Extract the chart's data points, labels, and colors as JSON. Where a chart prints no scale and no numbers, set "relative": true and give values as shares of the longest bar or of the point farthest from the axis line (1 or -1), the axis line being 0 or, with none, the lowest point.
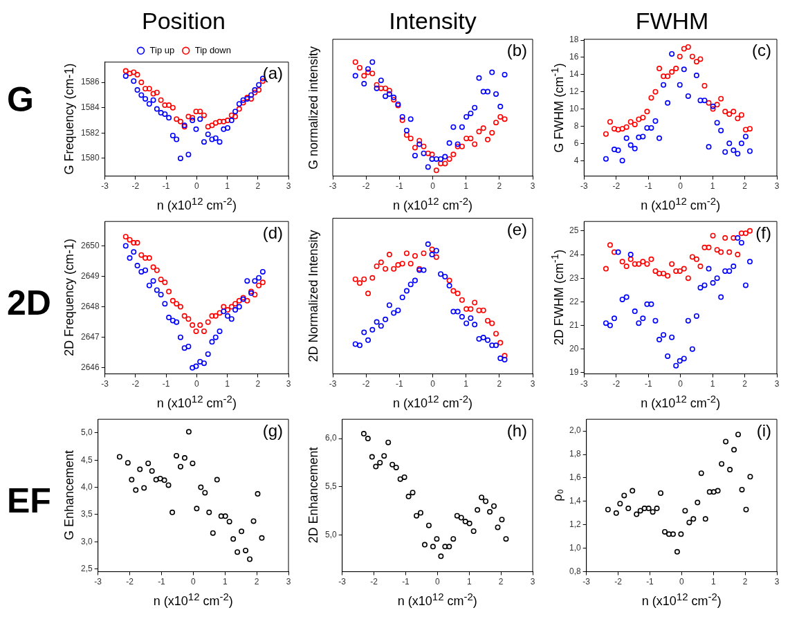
{
  "chart_data": [
    {
      "type": "scatter",
      "title": "Position",
      "xlabel": "n (x10$^{12}$ cm$^{-2}$)",
      "ylabel": "G Frequency (cm-1)",
      "annotations": [
        "(a)",
        "G"
      ],
      "legend": "top",
      "marker": "circle",
      "xlim": [
        -3,
        3
      ],
      "xticks": [
        -3,
        -2,
        -1,
        0,
        1,
        2,
        3
      ],
      "ylim": [
        1578.6,
        1587.6
      ],
      "yticks": [
        1580,
        1582,
        1584,
        1586
      ],
      "x": [
        -2.32,
        -2.19,
        -2.06,
        -1.94,
        -1.81,
        -1.68,
        -1.55,
        -1.42,
        -1.3,
        -1.17,
        -1.04,
        -0.91,
        -0.78,
        -0.66,
        -0.53,
        -0.4,
        -0.27,
        -0.14,
        -0.02,
        0.11,
        0.24,
        0.37,
        0.5,
        0.62,
        0.75,
        0.88,
        1.01,
        1.14,
        1.26,
        1.39,
        1.52,
        1.65,
        1.78,
        1.9,
        2.03,
        2.16
      ],
      "series": [
        {
          "name": "Tip up",
          "color": "#0000ff",
          "values": [
            1586.5,
            null,
            1586.1,
            1585.4,
            1585.0,
            1584.7,
            1584.3,
            1584.6,
            1583.9,
            1583.6,
            1583.5,
            1583.2,
            1581.8,
            1581.5,
            1580.0,
            1582.6,
            1580.3,
            1583.0,
            1582.3,
            1583.1,
            1581.3,
            1581.9,
            1581.5,
            1581.6,
            1581.3,
            1582.3,
            1582.4,
            1583.0,
            1583.7,
            1584.3,
            1584.6,
            1584.7,
            1585.0,
            1585.4,
            1585.8,
            1586.3
          ]
        },
        {
          "name": "Tip down",
          "color": "#ff0000",
          "values": [
            1586.9,
            1586.7,
            1586.8,
            1586.6,
            1586.0,
            1585.5,
            1585.5,
            1585.1,
            1585.2,
            1584.6,
            1584.2,
            1584.2,
            1584.0,
            1583.1,
            1582.9,
            1582.5,
            1583.3,
            1583.2,
            1583.7,
            1583.7,
            1583.4,
            1582.5,
            1582.6,
            1582.8,
            1582.9,
            1582.9,
            1583.0,
            1583.4,
            1583.3,
            1583.9,
            1584.4,
            1584.8,
            1584.7,
            1585.2,
            1585.4,
            1586.1
          ]
        }
      ]
    },
    {
      "type": "scatter",
      "title": "Intensity",
      "xlabel": "n (x10$^{12}$ cm$^{-2}$)",
      "ylabel": "G normalized intensity",
      "annotations": [
        "(b)"
      ],
      "relative": true,
      "marker": "circle",
      "xlim": [
        -3,
        3
      ],
      "xticks": [
        -3,
        -2,
        -1,
        0,
        1,
        2,
        3
      ],
      "x": [
        -2.32,
        -2.19,
        -2.06,
        -1.94,
        -1.81,
        -1.68,
        -1.55,
        -1.42,
        -1.3,
        -1.17,
        -1.04,
        -0.91,
        -0.78,
        -0.66,
        -0.53,
        -0.4,
        -0.27,
        -0.14,
        -0.02,
        0.11,
        0.24,
        0.37,
        0.5,
        0.62,
        0.75,
        0.88,
        1.01,
        1.14,
        1.26,
        1.39,
        1.52,
        1.65,
        1.78,
        1.9,
        2.03,
        2.16
      ],
      "series": [
        {
          "color": "#0000ff",
          "values": [
            0.88,
            null,
            0.81,
            0.94,
            1.0,
            0.77,
            0.84,
            0.7,
            0.72,
            0.69,
            0.63,
            0.52,
            0.4,
            0.5,
            0.18,
            0.28,
            0.2,
            0.08,
            0.15,
            0.15,
            0.15,
            0.17,
            0.29,
            0.43,
            0.28,
            0.43,
            0.52,
            0.55,
            0.6,
            0.86,
            0.74,
            0.74,
            0.91,
            0.72,
            0.61,
            0.89
          ]
        },
        {
          "color": "#ff0000",
          "values": [
            1.0,
            0.95,
            0.88,
            0.91,
            0.9,
            0.8,
            0.77,
            0.77,
            0.75,
            0.67,
            0.62,
            0.49,
            0.36,
            0.33,
            0.25,
            0.31,
            0.26,
            0.2,
            0.19,
            0.05,
            0.11,
            0.11,
            0.15,
            0.19,
            0.26,
            0.26,
            0.33,
            0.33,
            0.28,
            0.39,
            0.42,
            0.32,
            0.38,
            0.47,
            0.52,
            0.5
          ]
        }
      ]
    },
    {
      "type": "scatter",
      "title": "FWHM",
      "xlabel": "n (x10$^{12}$ cm$^{-2}$)",
      "ylabel": "G FWHM (cm$^{-1}$)",
      "annotations": [
        "(c)"
      ],
      "marker": "circle",
      "xlim": [
        -3,
        3
      ],
      "xticks": [
        -3,
        -2,
        -1,
        0,
        1,
        2,
        3
      ],
      "ylim": [
        2.2,
        18.1
      ],
      "yticks": [
        4,
        6,
        8,
        10,
        12,
        14,
        16,
        18
      ],
      "x": [
        -2.32,
        -2.19,
        -2.06,
        -1.94,
        -1.81,
        -1.68,
        -1.55,
        -1.42,
        -1.3,
        -1.17,
        -1.04,
        -0.91,
        -0.78,
        -0.66,
        -0.53,
        -0.4,
        -0.27,
        -0.14,
        -0.02,
        0.11,
        0.24,
        0.37,
        0.5,
        0.62,
        0.75,
        0.88,
        1.01,
        1.14,
        1.26,
        1.39,
        1.52,
        1.65,
        1.78,
        1.9,
        2.03,
        2.16
      ],
      "series": [
        {
          "color": "#0000ff",
          "values": [
            4.2,
            null,
            5.3,
            5.2,
            4.0,
            6.6,
            5.8,
            5.4,
            6.7,
            6.8,
            7.8,
            7.8,
            8.6,
            6.6,
            12.8,
            10.7,
            16.4,
            null,
            12.8,
            14.6,
            11.5,
            null,
            13.9,
            11.0,
            11.0,
            5.6,
            10.3,
            8.4,
            7.5,
            5.0,
            6.0,
            5.2,
            4.8,
            6.0,
            6.8,
            5.1
          ]
        },
        {
          "color": "#ff0000",
          "values": [
            7.1,
            8.5,
            7.7,
            7.6,
            7.7,
            7.9,
            8.5,
            8.2,
            8.8,
            9.0,
            9.7,
            11.3,
            12.0,
            14.7,
            13.8,
            13.8,
            14.3,
            14.7,
            16.1,
            17.0,
            17.2,
            16.1,
            15.5,
            15.8,
            12.7,
            10.7,
            10.0,
            10.5,
            11.2,
            9.7,
            9.4,
            9.7,
            8.9,
            9.3,
            7.6,
            7.7
          ]
        }
      ]
    },
    {
      "type": "scatter",
      "xlabel": "n (x10$^{12}$ cm$^{-2}$)",
      "ylabel": "2D Frequency (cm-1)",
      "annotations": [
        "(d)",
        "2D"
      ],
      "marker": "circle",
      "xlim": [
        -3,
        3
      ],
      "xticks": [
        -3,
        -2,
        -1,
        0,
        1,
        2,
        3
      ],
      "ylim": [
        2645.8,
        2650.8
      ],
      "yticks": [
        2646,
        2647,
        2648,
        2649,
        2650
      ],
      "x": [
        -2.32,
        -2.19,
        -2.06,
        -1.94,
        -1.81,
        -1.68,
        -1.55,
        -1.42,
        -1.3,
        -1.17,
        -1.04,
        -0.91,
        -0.78,
        -0.66,
        -0.53,
        -0.4,
        -0.27,
        -0.14,
        -0.02,
        0.11,
        0.24,
        0.37,
        0.5,
        0.62,
        0.75,
        0.88,
        1.01,
        1.14,
        1.26,
        1.39,
        1.52,
        1.65,
        1.78,
        1.9,
        2.03,
        2.16
      ],
      "series": [
        {
          "color": "#0000ff",
          "values": [
            2650.0,
            2649.6,
            2649.8,
            2649.35,
            2649.15,
            2649.2,
            2648.7,
            2648.85,
            2648.55,
            2648.4,
            2648.1,
            2647.65,
            2647.55,
            2647.5,
            2647.0,
            2646.65,
            2646.7,
            2646.0,
            2646.05,
            2646.2,
            2646.15,
            2646.45,
            2646.85,
            2647.0,
            2647.2,
            2647.85,
            2647.7,
            2647.6,
            2647.9,
            2648.0,
            2648.25,
            2648.85,
            2648.45,
            2648.85,
            2648.95,
            2649.15
          ]
        },
        {
          "color": "#ff0000",
          "values": [
            2650.3,
            2650.2,
            2650.1,
            2650.1,
            2649.7,
            2649.6,
            2649.6,
            2649.3,
            2649.2,
            2648.9,
            2648.8,
            2648.5,
            2648.2,
            2648.1,
            2648.0,
            2647.7,
            2647.6,
            2647.4,
            2647.2,
            2647.4,
            2647.2,
            2647.5,
            2647.7,
            2647.7,
            2647.8,
            2648.0,
            2647.9,
            2648.0,
            2648.1,
            2648.2,
            2648.3,
            2648.2,
            2648.5,
            2648.4,
            2648.7,
            2648.8
          ]
        }
      ]
    },
    {
      "type": "scatter",
      "xlabel": "n (x10$^{12}$ cm$^{-2}$)",
      "ylabel": "2D Normalized Intensity",
      "annotations": [
        "(e)"
      ],
      "relative": true,
      "marker": "circle",
      "xlim": [
        -3,
        3
      ],
      "xticks": [
        -3,
        -2,
        -1,
        0,
        1,
        2,
        3
      ],
      "x": [
        -2.32,
        -2.19,
        -2.06,
        -1.94,
        -1.81,
        -1.68,
        -1.55,
        -1.42,
        -1.3,
        -1.17,
        -1.04,
        -0.91,
        -0.78,
        -0.66,
        -0.53,
        -0.4,
        -0.27,
        -0.14,
        -0.02,
        0.11,
        0.24,
        0.37,
        0.5,
        0.62,
        0.75,
        0.88,
        1.01,
        1.14,
        1.26,
        1.39,
        1.52,
        1.65,
        1.78,
        1.9,
        2.03,
        2.16
      ],
      "series": [
        {
          "color": "#0000ff",
          "values": [
            0.23,
            0.22,
            0.32,
            0.26,
            0.34,
            0.4,
            0.37,
            0.42,
            0.53,
            0.47,
            0.49,
            0.59,
            0.64,
            0.69,
            0.72,
            0.8,
            0.8,
            1.0,
            0.92,
            0.95,
            0.77,
            0.75,
            0.68,
            0.48,
            0.48,
            0.44,
            0.39,
            0.43,
            0.38,
            0.27,
            0.28,
            0.26,
            0.22,
            0.22,
            0.12,
            0.11
          ]
        },
        {
          "color": "#ff0000",
          "values": [
            0.73,
            0.7,
            0.73,
            0.62,
            0.74,
            0.83,
            0.86,
            0.81,
            0.92,
            0.81,
            0.84,
            0.85,
            0.93,
            0.85,
            0.91,
            0.81,
            0.93,
            null,
            0.96,
            0.9,
            null,
            null,
            0.72,
            0.64,
            0.62,
            0.57,
            0.5,
            0.5,
            0.55,
            0.49,
            0.49,
            0.41,
            0.39,
            0.31,
            0.24,
            0.14
          ]
        }
      ]
    },
    {
      "type": "scatter",
      "xlabel": "n (x10$^{12}$ cm$^{-2}$)",
      "ylabel": "2D FWHM (cm$^{-1}$)",
      "annotations": [
        "(f)"
      ],
      "marker": "circle",
      "xlim": [
        -3,
        3
      ],
      "xticks": [
        -3,
        -2,
        -1,
        0,
        1,
        2,
        3
      ],
      "ylim": [
        18.95,
        25.4
      ],
      "yticks": [
        19,
        20,
        21,
        22,
        23,
        24,
        25
      ],
      "x": [
        -2.32,
        -2.19,
        -2.06,
        -1.94,
        -1.81,
        -1.68,
        -1.55,
        -1.42,
        -1.3,
        -1.17,
        -1.04,
        -0.91,
        -0.78,
        -0.66,
        -0.53,
        -0.4,
        -0.27,
        -0.14,
        -0.02,
        0.11,
        0.24,
        0.37,
        0.5,
        0.62,
        0.75,
        0.88,
        1.01,
        1.14,
        1.26,
        1.39,
        1.52,
        1.65,
        1.78,
        1.9,
        2.03,
        2.16
      ],
      "series": [
        {
          "color": "#0000ff",
          "values": [
            21.1,
            21.0,
            21.3,
            24.1,
            22.1,
            22.2,
            24.0,
            21.6,
            21.1,
            21.3,
            21.9,
            21.9,
            21.2,
            20.4,
            20.6,
            19.7,
            20.5,
            19.3,
            19.5,
            19.6,
            21.2,
            20.0,
            21.4,
            22.6,
            22.7,
            23.4,
            22.8,
            23.0,
            22.2,
            23.3,
            23.3,
            23.5,
            24.7,
            24.5,
            22.7,
            23.7
          ]
        },
        {
          "color": "#ff0000",
          "values": [
            23.4,
            24.4,
            24.1,
            null,
            23.7,
            23.5,
            23.8,
            23.6,
            23.6,
            23.7,
            23.6,
            23.8,
            23.3,
            23.2,
            23.2,
            23.1,
            23.6,
            23.3,
            23.3,
            23.4,
            23.0,
            23.9,
            23.8,
            23.5,
            24.3,
            24.3,
            24.8,
            24.2,
            24.1,
            24.7,
            24.1,
            24.7,
            24.0,
            24.9,
            24.9,
            25.0
          ]
        }
      ]
    },
    {
      "type": "scatter",
      "xlabel": "n (x10$^{12}$ cm$^{-2}$)",
      "ylabel": "G Enhancement",
      "annotations": [
        "(g)",
        "EF"
      ],
      "marker": "circle",
      "xlim": [
        -3,
        3
      ],
      "xticks": [
        -3,
        -2,
        -1,
        0,
        1,
        2,
        3
      ],
      "ylim": [
        2.45,
        5.25
      ],
      "yticks": [
        {
          "value": 2.5,
          "label": "2,5"
        },
        {
          "value": 3,
          "label": "3,0"
        },
        {
          "value": 3.5,
          "label": "3,5"
        },
        {
          "value": 4,
          "label": "4,0"
        },
        {
          "value": 4.5,
          "label": "4,5"
        },
        {
          "value": 5,
          "label": "5,0"
        }
      ],
      "x": [
        -2.32,
        -2.19,
        -2.06,
        -1.94,
        -1.81,
        -1.68,
        -1.55,
        -1.42,
        -1.3,
        -1.17,
        -1.04,
        -0.91,
        -0.78,
        -0.66,
        -0.53,
        -0.4,
        -0.27,
        -0.14,
        -0.02,
        0.11,
        0.24,
        0.37,
        0.5,
        0.62,
        0.75,
        0.88,
        1.01,
        1.14,
        1.26,
        1.39,
        1.52,
        1.65,
        1.78,
        1.9,
        2.03,
        2.16
      ],
      "series": [
        {
          "color": "#000000",
          "values": [
            4.56,
            null,
            4.45,
            4.14,
            3.95,
            4.33,
            3.99,
            4.44,
            4.3,
            4.14,
            4.16,
            4.13,
            4.04,
            3.54,
            4.58,
            4.38,
            4.54,
            5.02,
            4.44,
            3.61,
            4.0,
            3.9,
            3.54,
            3.16,
            4.14,
            3.47,
            3.47,
            3.37,
            3.05,
            2.81,
            3.19,
            2.84,
            2.68,
            3.38,
            3.88,
            3.07
          ]
        }
      ]
    },
    {
      "type": "scatter",
      "xlabel": "n (x10$^{12}$ cm$^{-2}$)",
      "ylabel": "2D Enhancement",
      "annotations": [
        "(h)"
      ],
      "marker": "circle",
      "xlim": [
        -3,
        3
      ],
      "xticks": [
        -3,
        -2,
        -1,
        0,
        1,
        2,
        3
      ],
      "ylim": [
        4.62,
        6.2
      ],
      "yticks": [
        {
          "value": 5,
          "label": "5,0"
        },
        {
          "value": 5.5,
          "label": "5,5"
        },
        {
          "value": 6,
          "label": "6,0"
        }
      ],
      "x": [
        -2.32,
        -2.19,
        -2.06,
        -1.94,
        -1.81,
        -1.68,
        -1.55,
        -1.42,
        -1.3,
        -1.17,
        -1.04,
        -0.91,
        -0.78,
        -0.66,
        -0.53,
        -0.4,
        -0.27,
        -0.14,
        -0.02,
        0.11,
        0.24,
        0.37,
        0.5,
        0.62,
        0.75,
        0.88,
        1.01,
        1.14,
        1.26,
        1.39,
        1.52,
        1.65,
        1.78,
        1.9,
        2.03,
        2.16
      ],
      "series": [
        {
          "color": "#000000",
          "values": [
            6.05,
            6.0,
            5.81,
            5.71,
            5.75,
            5.82,
            5.96,
            5.73,
            5.7,
            5.58,
            5.6,
            5.4,
            5.44,
            5.2,
            5.23,
            4.9,
            5.1,
            4.88,
            4.96,
            4.78,
            4.88,
            4.88,
            4.96,
            5.2,
            5.18,
            5.14,
            5.12,
            5.04,
            5.26,
            5.39,
            5.35,
            5.24,
            5.3,
            5.08,
            5.16,
            4.96
          ]
        }
      ]
    },
    {
      "type": "scatter",
      "xlabel": "n (x10$^{12}$ cm$^{-2}$)",
      "ylabel": "ρ₀",
      "annotations": [
        "(i)"
      ],
      "marker": "circle",
      "xlim": [
        -3,
        3
      ],
      "xticks": [
        -3,
        -2,
        -1,
        0,
        1,
        2,
        3
      ],
      "ylim": [
        0.8,
        2.1
      ],
      "yticks": [
        {
          "value": 0.8,
          "label": "0,8"
        },
        {
          "value": 1,
          "label": "1,0"
        },
        {
          "value": 1.2,
          "label": "1,2"
        },
        {
          "value": 1.4,
          "label": "1,4"
        },
        {
          "value": 1.6,
          "label": "1,6"
        },
        {
          "value": 1.8,
          "label": "1,8"
        },
        {
          "value": 2,
          "label": "2,0"
        }
      ],
      "x": [
        -2.32,
        -2.19,
        -2.06,
        -1.94,
        -1.81,
        -1.68,
        -1.55,
        -1.42,
        -1.3,
        -1.17,
        -1.04,
        -0.91,
        -0.78,
        -0.66,
        -0.53,
        -0.4,
        -0.27,
        -0.14,
        -0.02,
        0.11,
        0.24,
        0.37,
        0.5,
        0.62,
        0.75,
        0.88,
        1.01,
        1.14,
        1.26,
        1.39,
        1.52,
        1.65,
        1.78,
        1.9,
        2.03,
        2.16
      ],
      "series": [
        {
          "color": "#000000",
          "values": [
            1.33,
            null,
            1.3,
            1.38,
            1.45,
            1.34,
            1.49,
            1.29,
            1.32,
            1.34,
            1.34,
            1.31,
            1.34,
            1.47,
            1.14,
            1.12,
            1.12,
            0.97,
            1.12,
            1.32,
            1.22,
            1.25,
            1.39,
            1.64,
            1.25,
            1.48,
            1.48,
            1.49,
            1.72,
            1.91,
            1.67,
            1.84,
            1.97,
            1.5,
            1.33,
            1.61
          ]
        }
      ]
    }
  ]
}
